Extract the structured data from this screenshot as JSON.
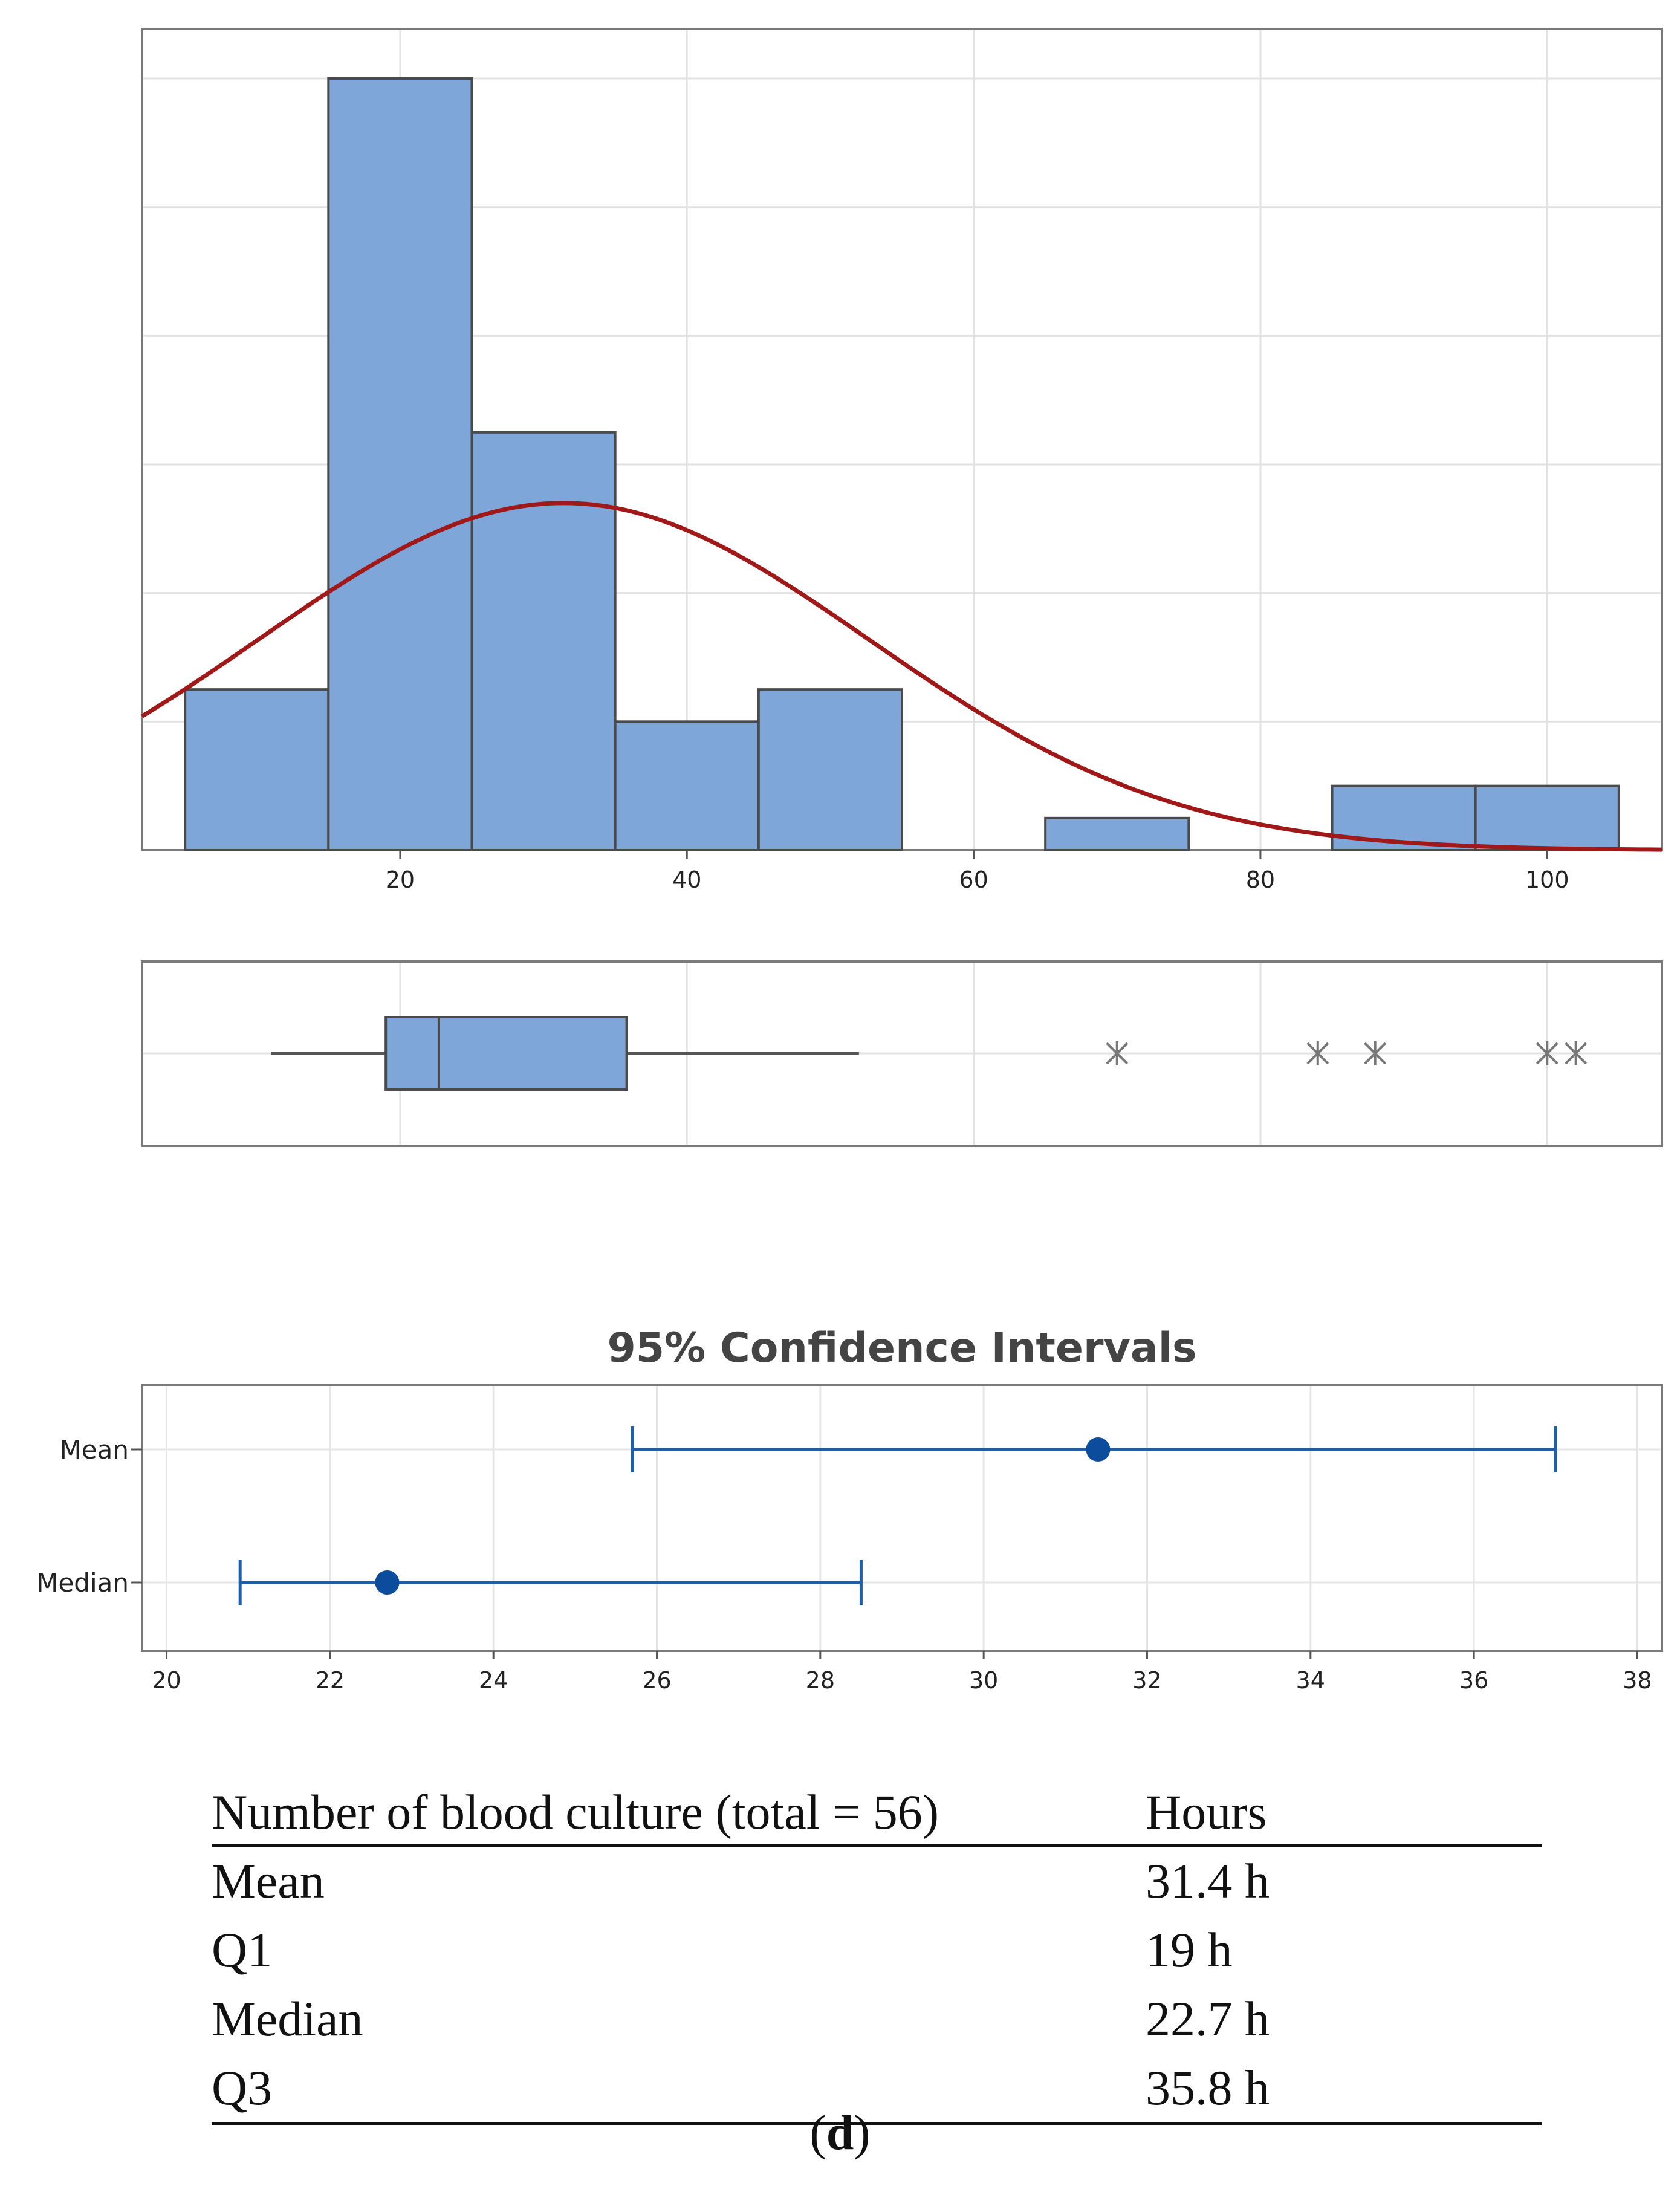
{
  "chart_data": [
    {
      "type": "bar",
      "subtype": "histogram",
      "title": "",
      "xlabel": "",
      "ylabel": "",
      "xlim": [
        2,
        108
      ],
      "ylim": [
        0,
        12
      ],
      "x_ticks": [
        20,
        40,
        60,
        80,
        100
      ],
      "bins": [
        {
          "start": 5,
          "end": 15,
          "count": 2.5
        },
        {
          "start": 15,
          "end": 25,
          "count": 12
        },
        {
          "start": 25,
          "end": 35,
          "count": 6.5
        },
        {
          "start": 35,
          "end": 45,
          "count": 2
        },
        {
          "start": 45,
          "end": 55,
          "count": 2.5
        },
        {
          "start": 55,
          "end": 65,
          "count": 0
        },
        {
          "start": 65,
          "end": 75,
          "count": 0.5
        },
        {
          "start": 75,
          "end": 85,
          "count": 0
        },
        {
          "start": 85,
          "end": 95,
          "count": 1
        },
        {
          "start": 95,
          "end": 105,
          "count": 1
        }
      ],
      "normal_fit": {
        "mean": 31.4,
        "sd": 21.3,
        "peak": 5.4
      },
      "colors": {
        "bar": "#7ea6d9",
        "bar_edge": "#4a4a4a",
        "curve": "#a01818",
        "grid": "#e2e2e2"
      }
    },
    {
      "type": "boxplot",
      "xlim": [
        2,
        108
      ],
      "whisker_low": 11,
      "q1": 19,
      "median": 22.7,
      "q3": 35.8,
      "whisker_high": 52,
      "outliers": [
        70,
        84,
        88,
        100,
        102
      ],
      "colors": {
        "box": "#7ea6d9"
      }
    },
    {
      "type": "errorbar",
      "title": "95% Confidence Intervals",
      "xlim": [
        19.7,
        38.3
      ],
      "x_ticks": [
        20,
        22,
        24,
        26,
        28,
        30,
        32,
        34,
        36,
        38
      ],
      "categories": [
        "Mean",
        "Median"
      ],
      "intervals": [
        {
          "label": "Mean",
          "low": 25.7,
          "estimate": 31.4,
          "high": 37.0
        },
        {
          "label": "Median",
          "low": 20.9,
          "estimate": 22.7,
          "high": 28.5
        }
      ],
      "colors": {
        "line": "#1f5fa8",
        "point": "#0b4c9c"
      }
    }
  ],
  "stats_table": {
    "header": [
      "Number of blood culture (total = 56)",
      "Hours"
    ],
    "rows": [
      [
        "Mean",
        "31.4 h"
      ],
      [
        "Q1",
        "19 h"
      ],
      [
        "Median",
        "22.7 h"
      ],
      [
        "Q3",
        "35.8 h"
      ]
    ]
  },
  "caption": {
    "open": "(",
    "letter": "d",
    "close": ")"
  }
}
